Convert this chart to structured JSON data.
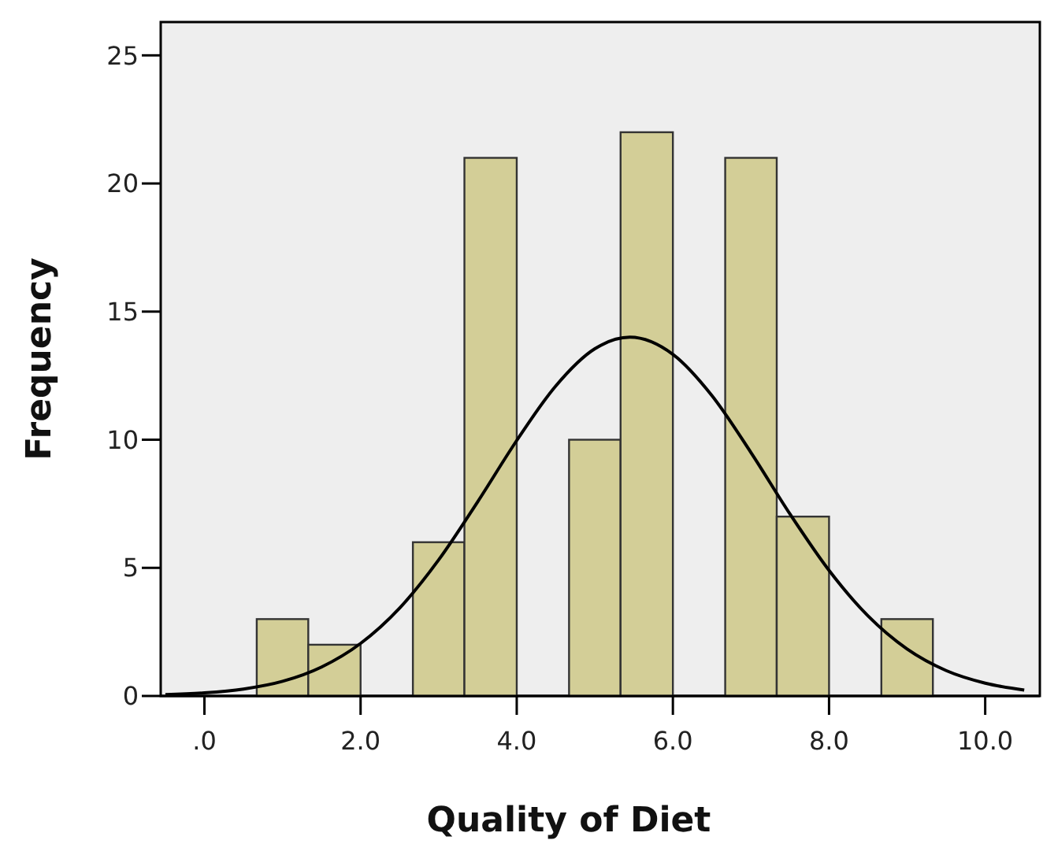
{
  "chart_data": {
    "type": "histogram",
    "xlabel": "Quality of Diet",
    "ylabel": "Frequency",
    "bins": [
      0.67,
      1.33,
      2,
      2.67,
      3.33,
      4,
      4.67,
      5.33,
      6,
      6.67,
      7.33,
      8,
      8.67,
      9.33
    ],
    "values": [
      3,
      2,
      0,
      6,
      21,
      0,
      10,
      22,
      0,
      21,
      7,
      0,
      3
    ],
    "color": "#d3ce97",
    "series": [
      {
        "type": "line",
        "color": "#000000",
        "x": [
          -0.5,
          0,
          0.5,
          1,
          1.5,
          2,
          2.5,
          3,
          3.5,
          4,
          4.5,
          5,
          5.45,
          6,
          6.5,
          7,
          7.5,
          8,
          8.5,
          9,
          9.5,
          10,
          10.5
        ],
        "values": [
          0.05,
          0.12,
          0.27,
          0.57,
          1.13,
          2.05,
          3.43,
          5.31,
          7.58,
          9.97,
          12.1,
          13.55,
          14,
          13.33,
          11.72,
          9.5,
          7.1,
          4.9,
          3.12,
          1.83,
          0.99,
          0.5,
          0.23
        ]
      }
    ],
    "xlim": [
      -0.56,
      10.7
    ],
    "ylim": [
      0,
      26.3
    ],
    "xticks": [
      {
        "value": 0,
        "label": ".0"
      },
      {
        "value": 2,
        "label": "2.0"
      },
      {
        "value": 4,
        "label": "4.0"
      },
      {
        "value": 6,
        "label": "6.0"
      },
      {
        "value": 8,
        "label": "8.0"
      },
      {
        "value": 10,
        "label": "10.0"
      }
    ],
    "yticks": [
      0,
      5,
      10,
      15,
      20,
      25
    ],
    "grid": false
  }
}
